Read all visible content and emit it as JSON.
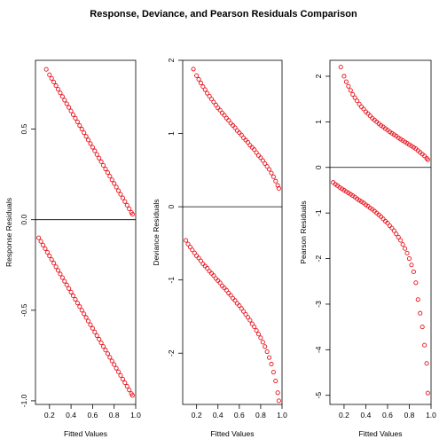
{
  "title": "Response, Deviance, and Pearson Residuals Comparison",
  "colors": {
    "points": "#e8101a",
    "axis": "#000000",
    "background": "#ffffff"
  },
  "chart_data": [
    {
      "type": "scatter",
      "xlabel": "Fitted Values",
      "ylabel": "Response Residuals",
      "xlim": [
        0.07,
        1.0
      ],
      "ylim": [
        -1.02,
        0.88
      ],
      "xticks": [
        0.2,
        0.4,
        0.6,
        0.8,
        1.0
      ],
      "xtick_labels": [
        "0.2",
        "0.4",
        "0.6",
        "0.8",
        "1.0"
      ],
      "yticks": [
        0.5,
        0.0,
        -0.5,
        -1.0
      ],
      "ytick_labels": [
        "0.5",
        "0.0",
        "-0.5",
        "-1.0"
      ],
      "hline": 0,
      "grid": false,
      "series": [
        {
          "kind": "response",
          "outcome": 1,
          "x": [
            0.17,
            0.2,
            0.22,
            0.24,
            0.26,
            0.28,
            0.3,
            0.32,
            0.34,
            0.36,
            0.38,
            0.4,
            0.42,
            0.44,
            0.46,
            0.48,
            0.5,
            0.52,
            0.54,
            0.56,
            0.58,
            0.6,
            0.62,
            0.64,
            0.66,
            0.68,
            0.7,
            0.72,
            0.74,
            0.76,
            0.78,
            0.8,
            0.82,
            0.84,
            0.86,
            0.88,
            0.9,
            0.92,
            0.94,
            0.96,
            0.97
          ],
          "y": [
            0.83,
            0.8,
            0.78,
            0.76,
            0.74,
            0.72,
            0.7,
            0.68,
            0.66,
            0.64,
            0.62,
            0.6,
            0.58,
            0.56,
            0.54,
            0.52,
            0.5,
            0.48,
            0.46,
            0.44,
            0.42,
            0.4,
            0.38,
            0.36,
            0.34,
            0.32,
            0.3,
            0.28,
            0.26,
            0.24,
            0.22,
            0.2,
            0.18,
            0.16,
            0.14,
            0.12,
            0.1,
            0.08,
            0.06,
            0.04,
            0.03
          ]
        },
        {
          "kind": "response",
          "outcome": 0,
          "x": [
            0.1,
            0.12,
            0.14,
            0.16,
            0.18,
            0.2,
            0.22,
            0.24,
            0.26,
            0.28,
            0.3,
            0.32,
            0.34,
            0.36,
            0.38,
            0.4,
            0.42,
            0.44,
            0.46,
            0.48,
            0.5,
            0.52,
            0.54,
            0.56,
            0.58,
            0.6,
            0.62,
            0.64,
            0.66,
            0.68,
            0.7,
            0.72,
            0.74,
            0.76,
            0.78,
            0.8,
            0.82,
            0.84,
            0.86,
            0.88,
            0.9,
            0.92,
            0.94,
            0.96,
            0.97
          ],
          "y": [
            -0.1,
            -0.12,
            -0.14,
            -0.16,
            -0.18,
            -0.2,
            -0.22,
            -0.24,
            -0.26,
            -0.28,
            -0.3,
            -0.32,
            -0.34,
            -0.36,
            -0.38,
            -0.4,
            -0.42,
            -0.44,
            -0.46,
            -0.48,
            -0.5,
            -0.52,
            -0.54,
            -0.56,
            -0.58,
            -0.6,
            -0.62,
            -0.64,
            -0.66,
            -0.68,
            -0.7,
            -0.72,
            -0.74,
            -0.76,
            -0.78,
            -0.8,
            -0.82,
            -0.84,
            -0.86,
            -0.88,
            -0.9,
            -0.92,
            -0.94,
            -0.96,
            -0.97
          ]
        }
      ]
    },
    {
      "type": "scatter",
      "xlabel": "Fitted Values",
      "ylabel": "Deviance Residuals",
      "xlim": [
        0.07,
        1.0
      ],
      "ylim": [
        -2.7,
        2.0
      ],
      "xticks": [
        0.2,
        0.4,
        0.6,
        0.8,
        1.0
      ],
      "xtick_labels": [
        "0.2",
        "0.4",
        "0.6",
        "0.8",
        "1.0"
      ],
      "yticks": [
        2,
        1,
        0,
        -1,
        -2
      ],
      "ytick_labels": [
        "2",
        "1",
        "0",
        "-1",
        "-2"
      ],
      "hline": 0,
      "grid": false,
      "series": [
        {
          "kind": "deviance",
          "outcome": 1,
          "x": [
            0.17,
            0.2,
            0.22,
            0.24,
            0.26,
            0.28,
            0.3,
            0.32,
            0.34,
            0.36,
            0.38,
            0.4,
            0.42,
            0.44,
            0.46,
            0.48,
            0.5,
            0.52,
            0.54,
            0.56,
            0.58,
            0.6,
            0.62,
            0.64,
            0.66,
            0.68,
            0.7,
            0.72,
            0.74,
            0.76,
            0.78,
            0.8,
            0.82,
            0.84,
            0.86,
            0.88,
            0.9,
            0.92,
            0.94,
            0.96,
            0.97
          ],
          "y": [
            1.88,
            1.79,
            1.74,
            1.69,
            1.64,
            1.6,
            1.55,
            1.51,
            1.47,
            1.43,
            1.39,
            1.35,
            1.32,
            1.28,
            1.25,
            1.21,
            1.18,
            1.14,
            1.11,
            1.08,
            1.04,
            1.01,
            0.98,
            0.94,
            0.91,
            0.88,
            0.84,
            0.81,
            0.78,
            0.74,
            0.7,
            0.67,
            0.63,
            0.59,
            0.55,
            0.51,
            0.46,
            0.41,
            0.35,
            0.29,
            0.25
          ]
        },
        {
          "kind": "deviance",
          "outcome": 0,
          "x": [
            0.1,
            0.12,
            0.14,
            0.16,
            0.18,
            0.2,
            0.22,
            0.24,
            0.26,
            0.28,
            0.3,
            0.32,
            0.34,
            0.36,
            0.38,
            0.4,
            0.42,
            0.44,
            0.46,
            0.48,
            0.5,
            0.52,
            0.54,
            0.56,
            0.58,
            0.6,
            0.62,
            0.64,
            0.66,
            0.68,
            0.7,
            0.72,
            0.74,
            0.76,
            0.78,
            0.8,
            0.82,
            0.84,
            0.86,
            0.88,
            0.9,
            0.92,
            0.94,
            0.96,
            0.97
          ],
          "y": [
            -0.46,
            -0.51,
            -0.55,
            -0.59,
            -0.63,
            -0.67,
            -0.7,
            -0.74,
            -0.78,
            -0.81,
            -0.84,
            -0.88,
            -0.91,
            -0.94,
            -0.98,
            -1.01,
            -1.04,
            -1.08,
            -1.11,
            -1.14,
            -1.18,
            -1.21,
            -1.25,
            -1.28,
            -1.32,
            -1.35,
            -1.39,
            -1.43,
            -1.47,
            -1.51,
            -1.55,
            -1.6,
            -1.64,
            -1.69,
            -1.74,
            -1.79,
            -1.85,
            -1.91,
            -1.98,
            -2.06,
            -2.15,
            -2.26,
            -2.38,
            -2.54,
            -2.65
          ]
        }
      ]
    },
    {
      "type": "scatter",
      "xlabel": "Fitted Values",
      "ylabel": "Pearson Residuals",
      "xlim": [
        0.07,
        1.0
      ],
      "ylim": [
        -5.2,
        2.35
      ],
      "xticks": [
        0.2,
        0.4,
        0.6,
        0.8,
        1.0
      ],
      "xtick_labels": [
        "0.2",
        "0.4",
        "0.6",
        "0.8",
        "1.0"
      ],
      "yticks": [
        2,
        1,
        0,
        -1,
        -2,
        -3,
        -4,
        -5
      ],
      "ytick_labels": [
        "2",
        "1",
        "0",
        "-1",
        "-2",
        "-3",
        "-4",
        "-5"
      ],
      "hline": 0,
      "grid": false,
      "series": [
        {
          "kind": "pearson",
          "outcome": 1,
          "x": [
            0.17,
            0.2,
            0.22,
            0.24,
            0.26,
            0.28,
            0.3,
            0.32,
            0.34,
            0.36,
            0.38,
            0.4,
            0.42,
            0.44,
            0.46,
            0.48,
            0.5,
            0.52,
            0.54,
            0.56,
            0.58,
            0.6,
            0.62,
            0.64,
            0.66,
            0.68,
            0.7,
            0.72,
            0.74,
            0.76,
            0.78,
            0.8,
            0.82,
            0.84,
            0.86,
            0.88,
            0.9,
            0.92,
            0.94,
            0.96,
            0.97
          ],
          "y": [
            2.2,
            2.0,
            1.88,
            1.78,
            1.69,
            1.6,
            1.53,
            1.46,
            1.39,
            1.33,
            1.28,
            1.22,
            1.18,
            1.13,
            1.08,
            1.04,
            1.0,
            0.96,
            0.92,
            0.89,
            0.85,
            0.82,
            0.78,
            0.75,
            0.72,
            0.69,
            0.65,
            0.62,
            0.59,
            0.56,
            0.53,
            0.5,
            0.47,
            0.44,
            0.41,
            0.37,
            0.33,
            0.29,
            0.25,
            0.2,
            0.17
          ]
        },
        {
          "kind": "pearson",
          "outcome": 0,
          "x": [
            0.1,
            0.12,
            0.14,
            0.16,
            0.18,
            0.2,
            0.22,
            0.24,
            0.26,
            0.28,
            0.3,
            0.32,
            0.34,
            0.36,
            0.38,
            0.4,
            0.42,
            0.44,
            0.46,
            0.48,
            0.5,
            0.52,
            0.54,
            0.56,
            0.58,
            0.6,
            0.62,
            0.64,
            0.66,
            0.68,
            0.7,
            0.72,
            0.74,
            0.76,
            0.78,
            0.8,
            0.82,
            0.84,
            0.86,
            0.88,
            0.9,
            0.92,
            0.94,
            0.96,
            0.97
          ],
          "y": [
            -0.33,
            -0.37,
            -0.4,
            -0.44,
            -0.47,
            -0.5,
            -0.53,
            -0.56,
            -0.59,
            -0.62,
            -0.65,
            -0.69,
            -0.72,
            -0.75,
            -0.78,
            -0.82,
            -0.85,
            -0.89,
            -0.92,
            -0.96,
            -1.0,
            -1.04,
            -1.08,
            -1.13,
            -1.18,
            -1.22,
            -1.28,
            -1.33,
            -1.39,
            -1.46,
            -1.53,
            -1.6,
            -1.69,
            -1.78,
            -1.88,
            -2.0,
            -2.14,
            -2.29,
            -2.53,
            -2.9,
            -3.2,
            -3.5,
            -3.9,
            -4.3,
            -4.95
          ]
        }
      ]
    }
  ]
}
